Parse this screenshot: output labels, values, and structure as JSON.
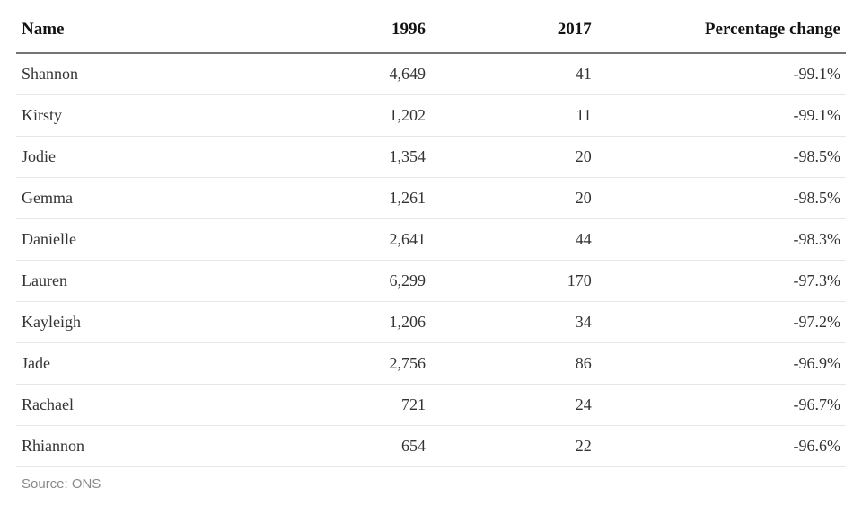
{
  "table": {
    "columns": [
      "Name",
      "1996",
      "2017",
      "Percentage change"
    ],
    "column_align": [
      "left",
      "right",
      "right",
      "right"
    ],
    "column_widths_pct": [
      30,
      20,
      20,
      30
    ],
    "rows": [
      [
        "Shannon",
        "4,649",
        "41",
        "-99.1%"
      ],
      [
        "Kirsty",
        "1,202",
        "11",
        "-99.1%"
      ],
      [
        "Jodie",
        "1,354",
        "20",
        "-98.5%"
      ],
      [
        "Gemma",
        "1,261",
        "20",
        "-98.5%"
      ],
      [
        "Danielle",
        "2,641",
        "44",
        "-98.3%"
      ],
      [
        "Lauren",
        "6,299",
        "170",
        "-97.3%"
      ],
      [
        "Kayleigh",
        "1,206",
        "34",
        "-97.2%"
      ],
      [
        "Jade",
        "2,756",
        "86",
        "-96.9%"
      ],
      [
        "Rachael",
        "721",
        "24",
        "-96.7%"
      ],
      [
        "Rhiannon",
        "654",
        "22",
        "-96.6%"
      ]
    ],
    "source_label": "Source: ONS",
    "header_fontsize_pt": 14,
    "body_fontsize_pt": 13,
    "header_color": "#121212",
    "body_color": "#333333",
    "source_color": "#8a8a8a",
    "header_border_color": "#747474",
    "row_border_color": "#e6e6e6",
    "background_color": "#ffffff",
    "font_family_serif": "Georgia",
    "font_family_sans": "Helvetica"
  }
}
